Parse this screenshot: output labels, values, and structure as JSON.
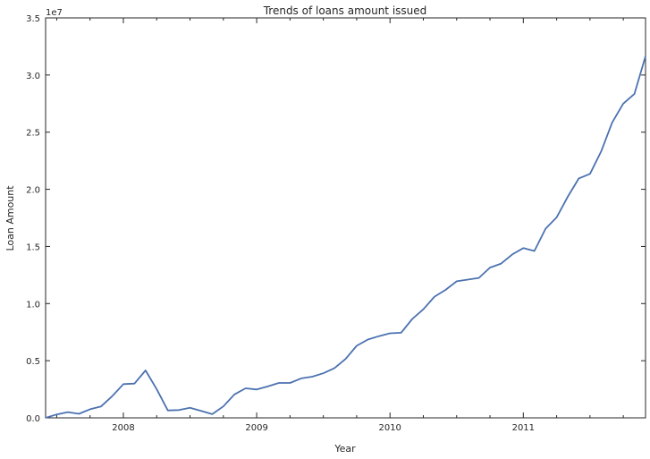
{
  "chart_data": {
    "type": "line",
    "title": "Trends of loans amount issued",
    "xlabel": "Year",
    "ylabel": "Loan Amount",
    "y_offset_label": "1e7",
    "x_axis": "date",
    "xlim": [
      "2007-06",
      "2011-12"
    ],
    "ylim": [
      0,
      35000000
    ],
    "yticks": [
      0,
      5000000,
      10000000,
      15000000,
      20000000,
      25000000,
      30000000,
      35000000
    ],
    "ytick_labels": [
      "0.0",
      "0.5",
      "1.0",
      "1.5",
      "2.0",
      "2.5",
      "3.0",
      "3.5"
    ],
    "xticks": [
      "2008-01",
      "2009-01",
      "2010-01",
      "2011-01"
    ],
    "xtick_labels": [
      "2008",
      "2009",
      "2010",
      "2011"
    ],
    "grid": false,
    "series": [
      {
        "color": "#4c72b0",
        "x": [
          "2007-06",
          "2007-07",
          "2007-08",
          "2007-09",
          "2007-10",
          "2007-11",
          "2007-12",
          "2008-01",
          "2008-02",
          "2008-03",
          "2008-04",
          "2008-05",
          "2008-06",
          "2008-07",
          "2008-08",
          "2008-09",
          "2008-10",
          "2008-11",
          "2008-12",
          "2009-01",
          "2009-02",
          "2009-03",
          "2009-04",
          "2009-05",
          "2009-06",
          "2009-07",
          "2009-08",
          "2009-09",
          "2009-10",
          "2009-11",
          "2009-12",
          "2010-01",
          "2010-02",
          "2010-03",
          "2010-04",
          "2010-05",
          "2010-06",
          "2010-07",
          "2010-08",
          "2010-09",
          "2010-10",
          "2010-11",
          "2010-12",
          "2011-01",
          "2011-02",
          "2011-03",
          "2011-04",
          "2011-05",
          "2011-06",
          "2011-07",
          "2011-08",
          "2011-09",
          "2011-10",
          "2011-11",
          "2011-12"
        ],
        "y": [
          0,
          300000,
          500000,
          350000,
          750000,
          1000000,
          1900000,
          2950000,
          3000000,
          4150000,
          2500000,
          650000,
          680000,
          880000,
          600000,
          320000,
          1000000,
          2050000,
          2580000,
          2480000,
          2750000,
          3050000,
          3050000,
          3450000,
          3600000,
          3900000,
          4350000,
          5150000,
          6300000,
          6850000,
          7150000,
          7400000,
          7450000,
          8650000,
          9500000,
          10600000,
          11200000,
          11950000,
          12100000,
          12250000,
          13150000,
          13500000,
          14300000,
          14850000,
          14600000,
          16550000,
          17550000,
          19350000,
          20950000,
          21350000,
          23300000,
          25850000,
          27500000,
          28350000,
          31650000
        ]
      }
    ]
  }
}
